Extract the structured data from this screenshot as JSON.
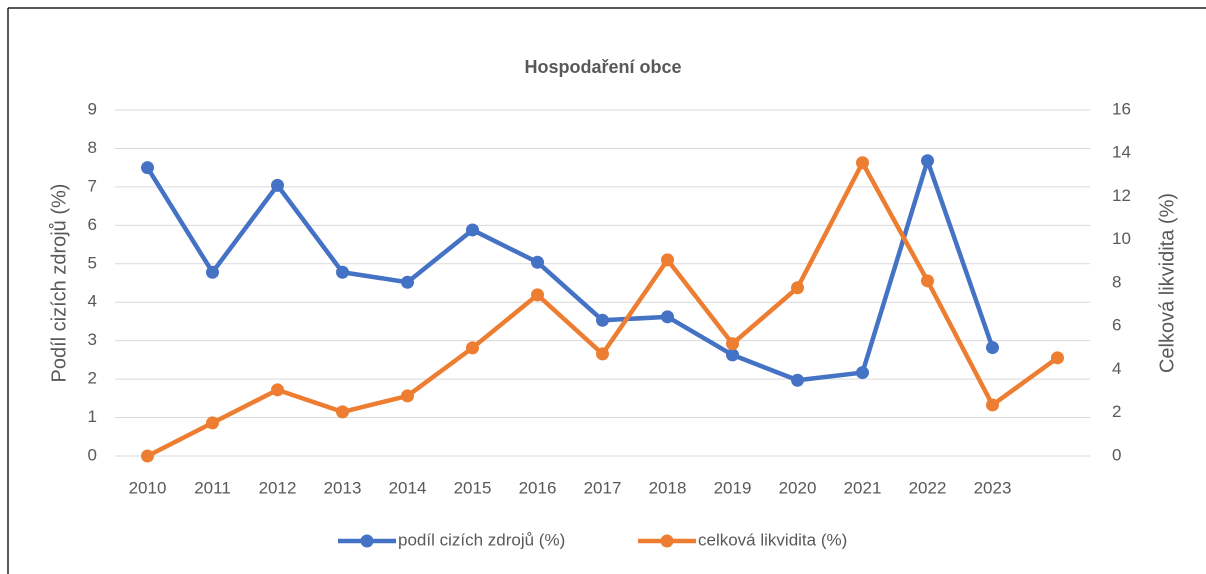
{
  "chart_data": {
    "type": "line",
    "title": "Hospodaření obce",
    "categories": [
      "2010",
      "2011",
      "2012",
      "2013",
      "2014",
      "2015",
      "2016",
      "2017",
      "2018",
      "2019",
      "2020",
      "2021",
      "2022",
      "2023",
      null
    ],
    "series": [
      {
        "name": "podíl cizích zdrojů (%)",
        "color": "#4472c4",
        "axis": "y",
        "values": [
          7.5,
          4.78,
          7.04,
          4.78,
          4.52,
          5.88,
          5.04,
          3.53,
          3.62,
          2.63,
          1.97,
          2.17,
          7.68,
          2.82,
          null
        ]
      },
      {
        "name": "celková likvidita (%)",
        "color": "#ed7d31",
        "axis": "y2",
        "values": [
          0,
          1.53,
          3.06,
          2.04,
          2.78,
          5.0,
          7.45,
          4.72,
          9.07,
          5.19,
          7.78,
          13.56,
          8.1,
          2.36,
          4.54
        ]
      }
    ],
    "ylabel": "Podíl cizích zdrojů (%)",
    "y2label": "Celková likvidita (%)",
    "ylim": [
      0,
      9
    ],
    "yticks": [
      0,
      1,
      2,
      3,
      4,
      5,
      6,
      7,
      8,
      9
    ],
    "y2lim": [
      0,
      16
    ],
    "y2ticks": [
      0,
      2,
      4,
      6,
      8,
      10,
      12,
      14,
      16
    ],
    "grid": true,
    "legend": "bottom"
  }
}
